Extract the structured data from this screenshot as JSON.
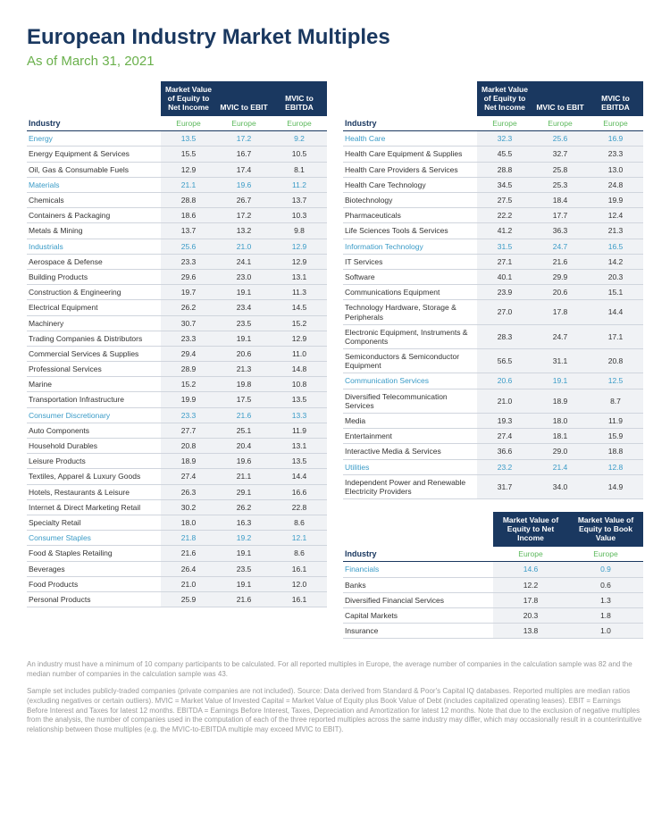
{
  "title": "European Industry Market Multiples",
  "subtitle": "As of March 31, 2021",
  "headers": {
    "industry": "Industry",
    "col1": "Market Value of Equity to Net Income",
    "col2": "MVIC to EBIT",
    "col3": "MVIC to EBITDA",
    "col_fin2": "Market Value of Equity to Book Value",
    "region": "Europe"
  },
  "left_rows": [
    {
      "n": "Energy",
      "v": [
        "13.5",
        "17.2",
        "9.2"
      ],
      "s": true
    },
    {
      "n": "Energy Equipment & Services",
      "v": [
        "15.5",
        "16.7",
        "10.5"
      ]
    },
    {
      "n": "Oil, Gas & Consumable Fuels",
      "v": [
        "12.9",
        "17.4",
        "8.1"
      ]
    },
    {
      "n": "Materials",
      "v": [
        "21.1",
        "19.6",
        "11.2"
      ],
      "s": true
    },
    {
      "n": "Chemicals",
      "v": [
        "28.8",
        "26.7",
        "13.7"
      ]
    },
    {
      "n": "Containers & Packaging",
      "v": [
        "18.6",
        "17.2",
        "10.3"
      ]
    },
    {
      "n": "Metals & Mining",
      "v": [
        "13.7",
        "13.2",
        "9.8"
      ]
    },
    {
      "n": "Industrials",
      "v": [
        "25.6",
        "21.0",
        "12.9"
      ],
      "s": true
    },
    {
      "n": "Aerospace & Defense",
      "v": [
        "23.3",
        "24.1",
        "12.9"
      ]
    },
    {
      "n": "Building Products",
      "v": [
        "29.6",
        "23.0",
        "13.1"
      ]
    },
    {
      "n": "Construction & Engineering",
      "v": [
        "19.7",
        "19.1",
        "11.3"
      ]
    },
    {
      "n": "Electrical Equipment",
      "v": [
        "26.2",
        "23.4",
        "14.5"
      ]
    },
    {
      "n": "Machinery",
      "v": [
        "30.7",
        "23.5",
        "15.2"
      ]
    },
    {
      "n": "Trading Companies & Distributors",
      "v": [
        "23.3",
        "19.1",
        "12.9"
      ]
    },
    {
      "n": "Commercial Services & Supplies",
      "v": [
        "29.4",
        "20.6",
        "11.0"
      ]
    },
    {
      "n": "Professional Services",
      "v": [
        "28.9",
        "21.3",
        "14.8"
      ]
    },
    {
      "n": "Marine",
      "v": [
        "15.2",
        "19.8",
        "10.8"
      ]
    },
    {
      "n": "Transportation Infrastructure",
      "v": [
        "19.9",
        "17.5",
        "13.5"
      ]
    },
    {
      "n": "Consumer Discretionary",
      "v": [
        "23.3",
        "21.6",
        "13.3"
      ],
      "s": true
    },
    {
      "n": "Auto Components",
      "v": [
        "27.7",
        "25.1",
        "11.9"
      ]
    },
    {
      "n": "Household Durables",
      "v": [
        "20.8",
        "20.4",
        "13.1"
      ]
    },
    {
      "n": "Leisure Products",
      "v": [
        "18.9",
        "19.6",
        "13.5"
      ]
    },
    {
      "n": "Textiles, Apparel & Luxury Goods",
      "v": [
        "27.4",
        "21.1",
        "14.4"
      ]
    },
    {
      "n": "Hotels, Restaurants & Leisure",
      "v": [
        "26.3",
        "29.1",
        "16.6"
      ]
    },
    {
      "n": "Internet & Direct Marketing Retail",
      "v": [
        "30.2",
        "26.2",
        "22.8"
      ]
    },
    {
      "n": "Specialty Retail",
      "v": [
        "18.0",
        "16.3",
        "8.6"
      ]
    },
    {
      "n": "Consumer Staples",
      "v": [
        "21.8",
        "19.2",
        "12.1"
      ],
      "s": true
    },
    {
      "n": "Food & Staples Retailing",
      "v": [
        "21.6",
        "19.1",
        "8.6"
      ]
    },
    {
      "n": "Beverages",
      "v": [
        "26.4",
        "23.5",
        "16.1"
      ]
    },
    {
      "n": "Food Products",
      "v": [
        "21.0",
        "19.1",
        "12.0"
      ]
    },
    {
      "n": "Personal Products",
      "v": [
        "25.9",
        "21.6",
        "16.1"
      ]
    }
  ],
  "right_rows": [
    {
      "n": "Health Care",
      "v": [
        "32.3",
        "25.6",
        "16.9"
      ],
      "s": true
    },
    {
      "n": "Health Care Equipment & Supplies",
      "v": [
        "45.5",
        "32.7",
        "23.3"
      ]
    },
    {
      "n": "Health Care Providers & Services",
      "v": [
        "28.8",
        "25.8",
        "13.0"
      ]
    },
    {
      "n": "Health Care Technology",
      "v": [
        "34.5",
        "25.3",
        "24.8"
      ]
    },
    {
      "n": "Biotechnology",
      "v": [
        "27.5",
        "18.4",
        "19.9"
      ]
    },
    {
      "n": "Pharmaceuticals",
      "v": [
        "22.2",
        "17.7",
        "12.4"
      ]
    },
    {
      "n": "Life Sciences Tools & Services",
      "v": [
        "41.2",
        "36.3",
        "21.3"
      ]
    },
    {
      "n": "Information Technology",
      "v": [
        "31.5",
        "24.7",
        "16.5"
      ],
      "s": true
    },
    {
      "n": "IT Services",
      "v": [
        "27.1",
        "21.6",
        "14.2"
      ]
    },
    {
      "n": "Software",
      "v": [
        "40.1",
        "29.9",
        "20.3"
      ]
    },
    {
      "n": "Communications Equipment",
      "v": [
        "23.9",
        "20.6",
        "15.1"
      ]
    },
    {
      "n": "Technology Hardware, Storage & Peripherals",
      "v": [
        "27.0",
        "17.8",
        "14.4"
      ]
    },
    {
      "n": "Electronic Equipment, Instruments & Components",
      "v": [
        "28.3",
        "24.7",
        "17.1"
      ]
    },
    {
      "n": "Semiconductors & Semiconductor Equipment",
      "v": [
        "56.5",
        "31.1",
        "20.8"
      ]
    },
    {
      "n": "Communication Services",
      "v": [
        "20.6",
        "19.1",
        "12.5"
      ],
      "s": true
    },
    {
      "n": "Diversified Telecommunication Services",
      "v": [
        "21.0",
        "18.9",
        "8.7"
      ]
    },
    {
      "n": "Media",
      "v": [
        "19.3",
        "18.0",
        "11.9"
      ]
    },
    {
      "n": "Entertainment",
      "v": [
        "27.4",
        "18.1",
        "15.9"
      ]
    },
    {
      "n": "Interactive Media & Services",
      "v": [
        "36.6",
        "29.0",
        "18.8"
      ]
    },
    {
      "n": "Utilities",
      "v": [
        "23.2",
        "21.4",
        "12.8"
      ],
      "s": true
    },
    {
      "n": "Independent Power and Renewable Electricity Providers",
      "v": [
        "31.7",
        "34.0",
        "14.9"
      ]
    }
  ],
  "fin_rows": [
    {
      "n": "Financials",
      "v": [
        "14.6",
        "0.9"
      ],
      "s": true
    },
    {
      "n": "Banks",
      "v": [
        "12.2",
        "0.6"
      ]
    },
    {
      "n": "Diversified Financial Services",
      "v": [
        "17.8",
        "1.3"
      ]
    },
    {
      "n": "Capital Markets",
      "v": [
        "20.3",
        "1.8"
      ]
    },
    {
      "n": "Insurance",
      "v": [
        "13.8",
        "1.0"
      ]
    }
  ],
  "footnotes": [
    "An industry must have a minimum of 10 company participants to be calculated. For all reported multiples in Europe, the average number of companies in the calculation sample was 82 and the median number of companies in the calculation sample was 43.",
    "Sample set includes publicly-traded companies (private companies are not included). Source: Data derived from Standard & Poor's Capital IQ databases. Reported multiples are median ratios (excluding negatives or certain outliers). MVIC = Market Value of Invested Capital = Market Value of Equity plus Book Value of Debt (includes capitalized operating leases). EBIT = Earnings Before Interest and Taxes for latest 12 months. EBITDA = Earnings Before Interest, Taxes, Depreciation and Amortization for latest 12 months. Note that due to the exclusion of negative multiples from the analysis, the number of companies used in the computation of each of the three reported multiples across the same industry may differ, which may occasionally result in a counterintuitive relationship between those multiples (e.g. the MVIC-to-EBITDA multiple may exceed MVIC to EBIT)."
  ]
}
